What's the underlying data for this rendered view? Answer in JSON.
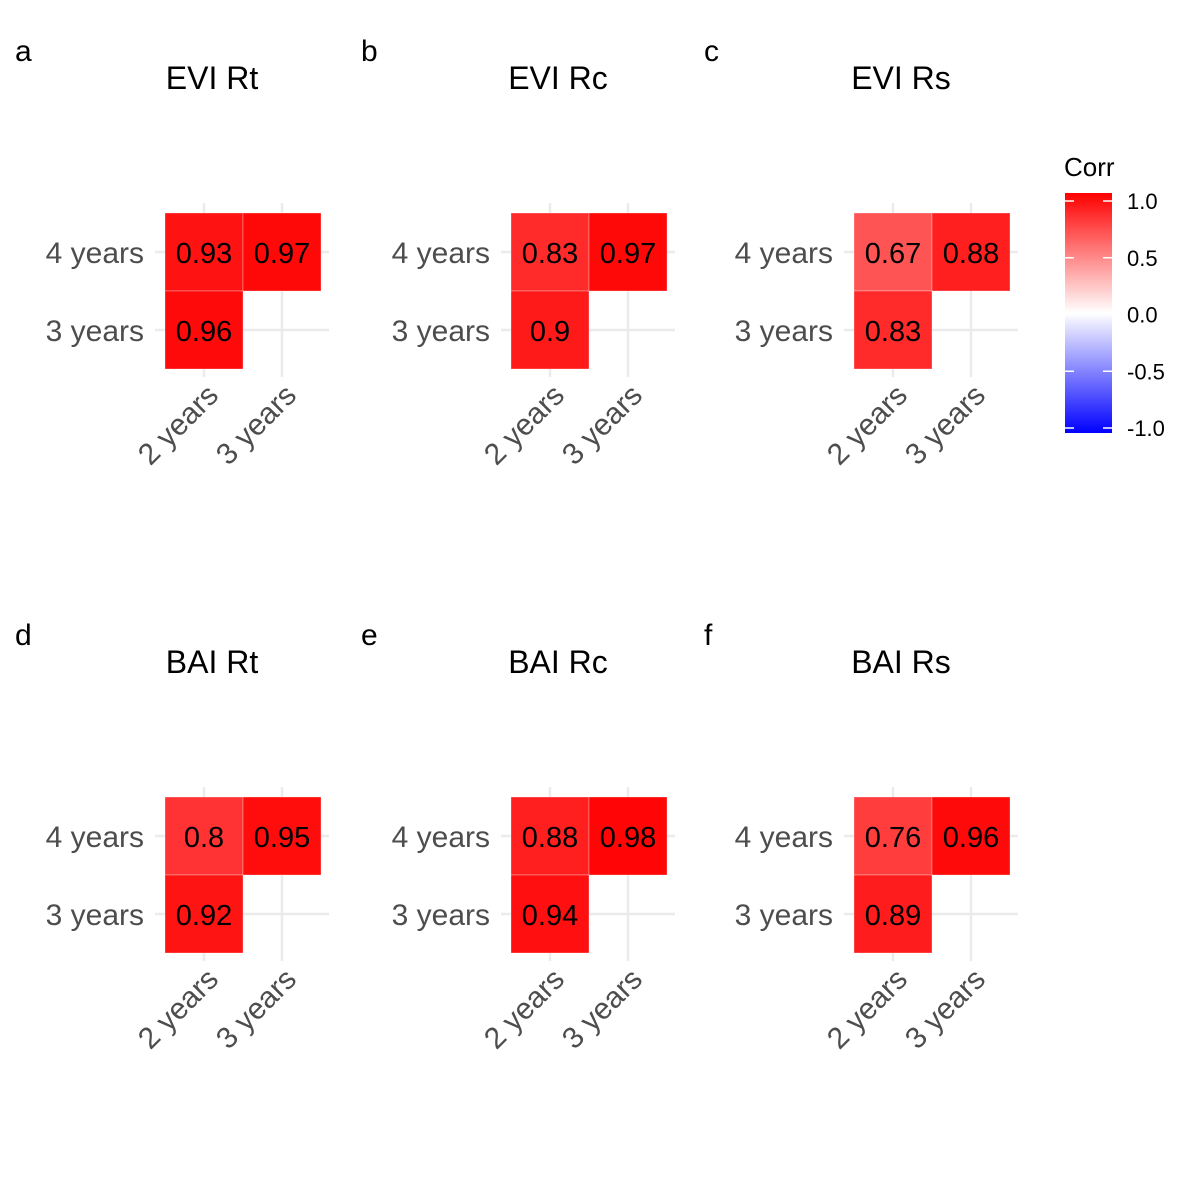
{
  "chart_data": [
    {
      "type": "heatmap",
      "panel_label": "a",
      "title": "EVI Rt",
      "x_categories": [
        "2 years",
        "3 years"
      ],
      "y_categories": [
        "3 years",
        "4 years"
      ],
      "cells": [
        {
          "x": "2 years",
          "y": "4 years",
          "value": 0.93,
          "label": "0.93"
        },
        {
          "x": "3 years",
          "y": "4 years",
          "value": 0.97,
          "label": "0.97"
        },
        {
          "x": "2 years",
          "y": "3 years",
          "value": 0.96,
          "label": "0.96"
        }
      ]
    },
    {
      "type": "heatmap",
      "panel_label": "b",
      "title": "EVI Rc",
      "x_categories": [
        "2 years",
        "3 years"
      ],
      "y_categories": [
        "3 years",
        "4 years"
      ],
      "cells": [
        {
          "x": "2 years",
          "y": "4 years",
          "value": 0.83,
          "label": "0.83"
        },
        {
          "x": "3 years",
          "y": "4 years",
          "value": 0.97,
          "label": "0.97"
        },
        {
          "x": "2 years",
          "y": "3 years",
          "value": 0.9,
          "label": "0.9"
        }
      ]
    },
    {
      "type": "heatmap",
      "panel_label": "c",
      "title": "EVI Rs",
      "x_categories": [
        "2 years",
        "3 years"
      ],
      "y_categories": [
        "3 years",
        "4 years"
      ],
      "cells": [
        {
          "x": "2 years",
          "y": "4 years",
          "value": 0.67,
          "label": "0.67"
        },
        {
          "x": "3 years",
          "y": "4 years",
          "value": 0.88,
          "label": "0.88"
        },
        {
          "x": "2 years",
          "y": "3 years",
          "value": 0.83,
          "label": "0.83"
        }
      ]
    },
    {
      "type": "heatmap",
      "panel_label": "d",
      "title": "BAI Rt",
      "x_categories": [
        "2 years",
        "3 years"
      ],
      "y_categories": [
        "3 years",
        "4 years"
      ],
      "cells": [
        {
          "x": "2 years",
          "y": "4 years",
          "value": 0.8,
          "label": "0.8"
        },
        {
          "x": "3 years",
          "y": "4 years",
          "value": 0.95,
          "label": "0.95"
        },
        {
          "x": "2 years",
          "y": "3 years",
          "value": 0.92,
          "label": "0.92"
        }
      ]
    },
    {
      "type": "heatmap",
      "panel_label": "e",
      "title": "BAI Rc",
      "x_categories": [
        "2 years",
        "3 years"
      ],
      "y_categories": [
        "3 years",
        "4 years"
      ],
      "cells": [
        {
          "x": "2 years",
          "y": "4 years",
          "value": 0.88,
          "label": "0.88"
        },
        {
          "x": "3 years",
          "y": "4 years",
          "value": 0.98,
          "label": "0.98"
        },
        {
          "x": "2 years",
          "y": "3 years",
          "value": 0.94,
          "label": "0.94"
        }
      ]
    },
    {
      "type": "heatmap",
      "panel_label": "f",
      "title": "BAI Rs",
      "x_categories": [
        "2 years",
        "3 years"
      ],
      "y_categories": [
        "3 years",
        "4 years"
      ],
      "cells": [
        {
          "x": "2 years",
          "y": "4 years",
          "value": 0.76,
          "label": "0.76"
        },
        {
          "x": "3 years",
          "y": "4 years",
          "value": 0.96,
          "label": "0.96"
        },
        {
          "x": "2 years",
          "y": "3 years",
          "value": 0.89,
          "label": "0.89"
        }
      ]
    }
  ],
  "legend": {
    "title": "Corr",
    "ticks": [
      {
        "value": 1.0,
        "label": "1.0"
      },
      {
        "value": 0.5,
        "label": "0.5"
      },
      {
        "value": 0.0,
        "label": "0.0"
      },
      {
        "value": -0.5,
        "label": "-0.5"
      },
      {
        "value": -1.0,
        "label": "-1.0"
      }
    ],
    "range": [
      -1,
      1
    ],
    "colors": {
      "low": "#0000ff",
      "mid": "#ffffff",
      "high": "#ff0000"
    }
  },
  "style": {
    "grid_color": "#ebebeb",
    "tick_label_color": "#4d4d4d",
    "text_color": "#000000"
  }
}
